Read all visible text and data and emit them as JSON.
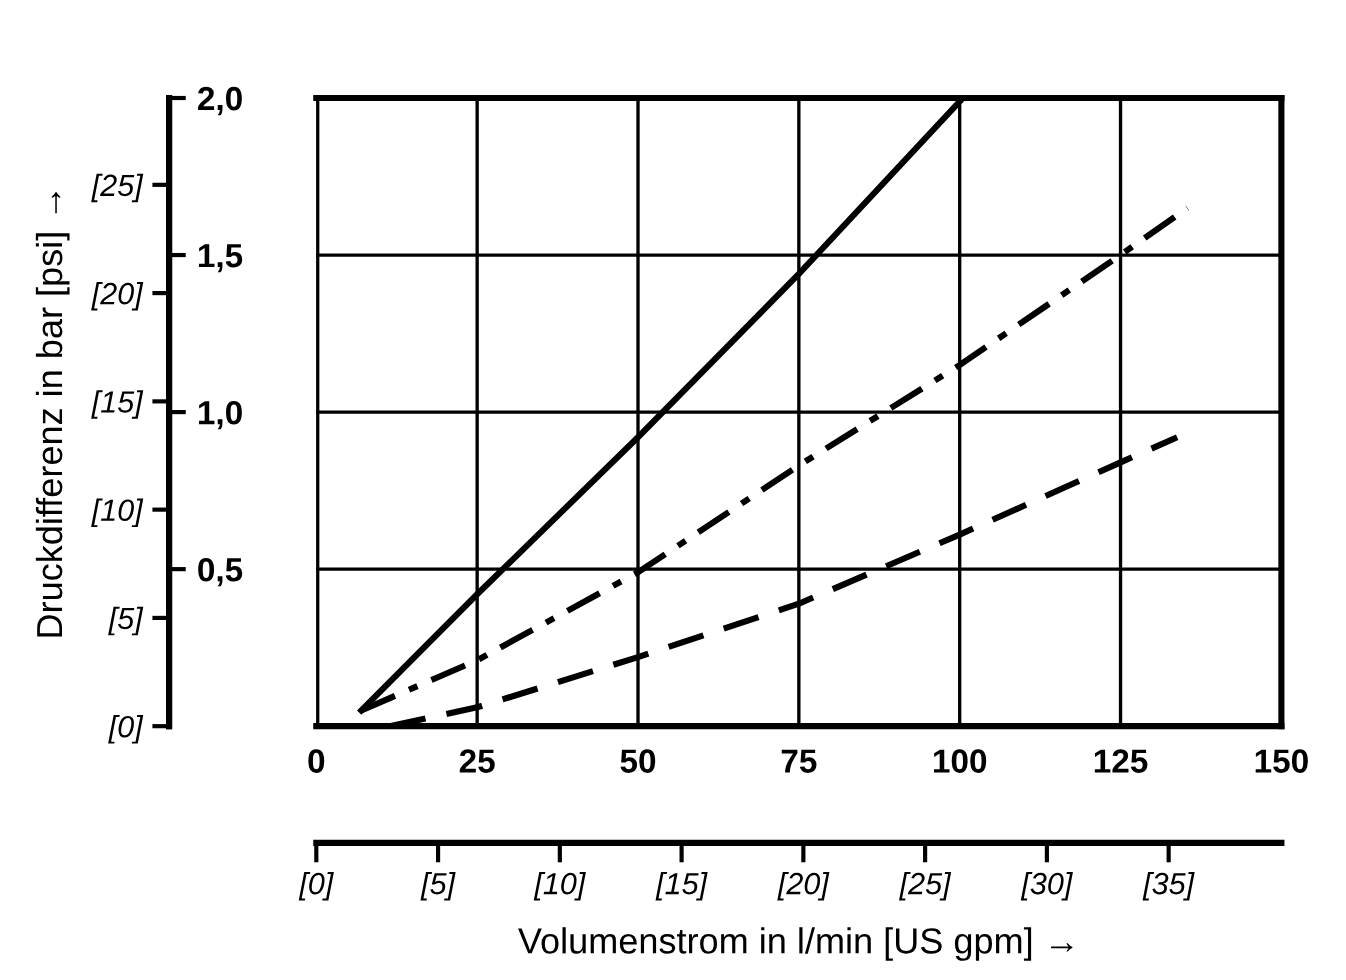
{
  "chart_data": {
    "type": "line",
    "xlabel": "Volumenstrom in l/min [US gpm] →",
    "y2label": "Druckdifferenz in bar [psi] →",
    "xlim": [
      0,
      150
    ],
    "xticks": [
      0,
      25,
      50,
      75,
      100,
      125,
      150
    ],
    "ylim": [
      0,
      2.0
    ],
    "yticks": [
      {
        "value": 0.5,
        "label": "0,5"
      },
      {
        "value": 1.0,
        "label": "1,0"
      },
      {
        "value": 1.5,
        "label": "1,5"
      },
      {
        "value": 2.0,
        "label": "2,0"
      }
    ],
    "y2lim": [
      0,
      29.01
    ],
    "y2ticks": [
      {
        "value": 0,
        "label": "[0]"
      },
      {
        "value": 5,
        "label": "[5]"
      },
      {
        "value": 10,
        "label": "[10]"
      },
      {
        "value": 15,
        "label": "[15]"
      },
      {
        "value": 20,
        "label": "[20]"
      },
      {
        "value": 25,
        "label": "[25]"
      }
    ],
    "x2lim": [
      0,
      39.63
    ],
    "x2ticks": [
      {
        "value": 0,
        "label": "[0]"
      },
      {
        "value": 5,
        "label": "[5]"
      },
      {
        "value": 10,
        "label": "[10]"
      },
      {
        "value": 15,
        "label": "[15]"
      },
      {
        "value": 20,
        "label": "[20]"
      },
      {
        "value": 25,
        "label": "[25]"
      },
      {
        "value": 30,
        "label": "[30]"
      },
      {
        "value": 35,
        "label": "[35]"
      }
    ],
    "grid": true,
    "marker": "none",
    "series": [
      {
        "color": "#000000",
        "line_style": "solid",
        "x": [
          7,
          25,
          50,
          75,
          100.5
        ],
        "values": [
          0.05,
          0.42,
          0.92,
          1.44,
          2.0
        ]
      },
      {
        "color": "#000000",
        "line_style": "dashdot",
        "x": [
          7,
          25,
          50,
          75,
          100,
          125,
          135.4
        ],
        "values": [
          0.05,
          0.21,
          0.49,
          0.83,
          1.15,
          1.5,
          1.65
        ]
      },
      {
        "color": "#000000",
        "line_style": "dashed",
        "x": [
          11.4,
          25,
          50,
          75,
          100,
          125,
          133.8
        ],
        "values": [
          0,
          0.06,
          0.22,
          0.39,
          0.61,
          0.84,
          0.92
        ]
      }
    ]
  }
}
